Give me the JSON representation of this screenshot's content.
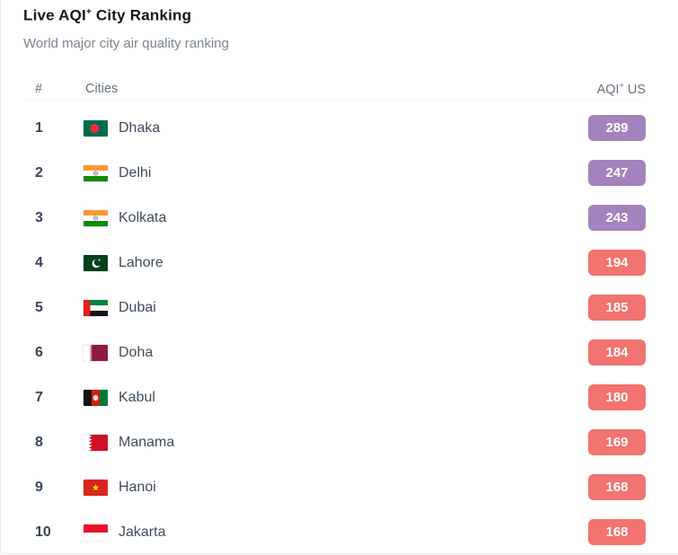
{
  "page": {
    "title_pre": "Live AQI",
    "title_sup": "+",
    "title_post": " City Ranking",
    "subtitle": "World major city air quality ranking"
  },
  "table": {
    "col_rank": "#",
    "col_cities": "Cities",
    "col_aqi_pre": "AQI",
    "col_aqi_sup": "+",
    "col_aqi_post": " US",
    "rows": [
      {
        "rank": "1",
        "city": "Dhaka",
        "flag": "bangladesh",
        "aqi": "289",
        "level": "very-unhealthy"
      },
      {
        "rank": "2",
        "city": "Delhi",
        "flag": "india",
        "aqi": "247",
        "level": "very-unhealthy"
      },
      {
        "rank": "3",
        "city": "Kolkata",
        "flag": "india",
        "aqi": "243",
        "level": "very-unhealthy"
      },
      {
        "rank": "4",
        "city": "Lahore",
        "flag": "pakistan",
        "aqi": "194",
        "level": "unhealthy"
      },
      {
        "rank": "5",
        "city": "Dubai",
        "flag": "uae",
        "aqi": "185",
        "level": "unhealthy"
      },
      {
        "rank": "6",
        "city": "Doha",
        "flag": "qatar",
        "aqi": "184",
        "level": "unhealthy"
      },
      {
        "rank": "7",
        "city": "Kabul",
        "flag": "afghanistan",
        "aqi": "180",
        "level": "unhealthy"
      },
      {
        "rank": "8",
        "city": "Manama",
        "flag": "bahrain",
        "aqi": "169",
        "level": "unhealthy"
      },
      {
        "rank": "9",
        "city": "Hanoi",
        "flag": "vietnam",
        "aqi": "168",
        "level": "unhealthy"
      },
      {
        "rank": "10",
        "city": "Jakarta",
        "flag": "indonesia",
        "aqi": "168",
        "level": "unhealthy"
      }
    ]
  },
  "colors": {
    "very-unhealthy": "#a283bd",
    "unhealthy": "#f2736f"
  }
}
